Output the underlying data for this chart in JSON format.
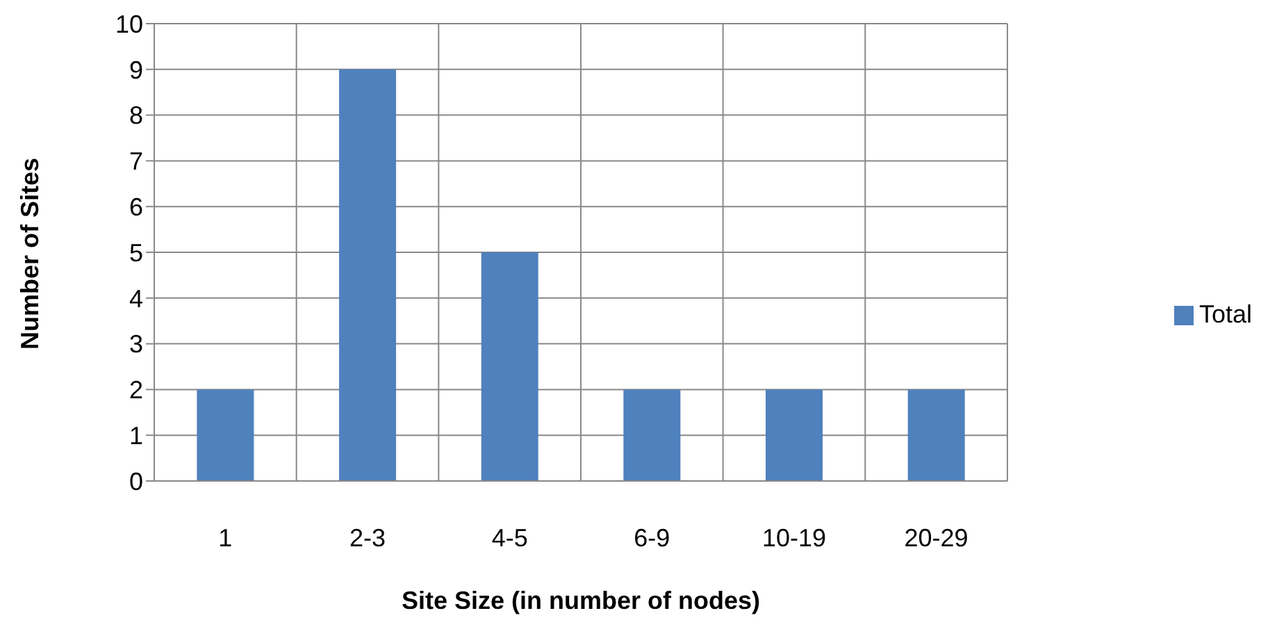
{
  "chart_data": {
    "type": "bar",
    "xlabel": "Site Size (in number of nodes)",
    "ylabel": "Number of Sites",
    "categories": [
      "1",
      "2-3",
      "4-5",
      "6-9",
      "10-19",
      "20-29"
    ],
    "series": [
      {
        "name": "Total",
        "color": "#4f81bd",
        "values": [
          2,
          9,
          5,
          2,
          2,
          2
        ]
      }
    ],
    "ylim": [
      0,
      10
    ],
    "yticks": [
      0,
      1,
      2,
      3,
      4,
      5,
      6,
      7,
      8,
      9,
      10
    ],
    "grid": true,
    "legend": "right"
  }
}
